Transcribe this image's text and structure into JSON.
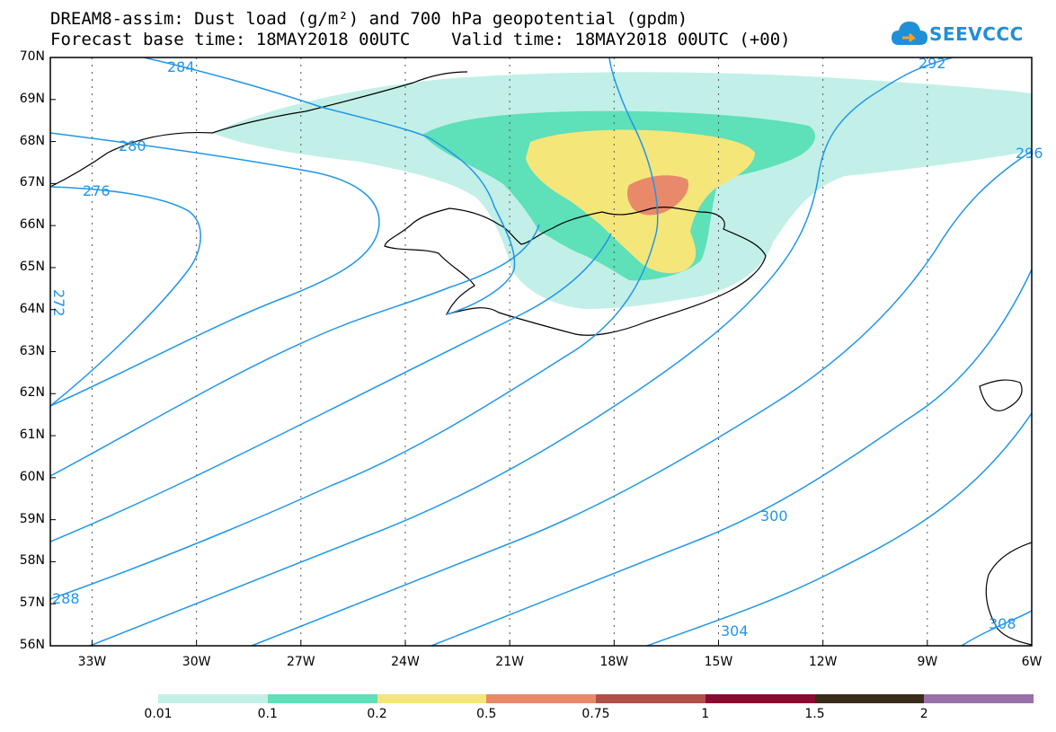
{
  "title": {
    "line1": "DREAM8-assim: Dust load (g/m²) and 700 hPa geopotential (gpdm)",
    "line2": "Forecast base time: 18MAY2018 00UTC    Valid time: 18MAY2018 00UTC (+00)"
  },
  "logo": {
    "text": "SEEVCCC",
    "icon": "cloud-icon"
  },
  "axes": {
    "lat_labels": [
      "70N",
      "69N",
      "68N",
      "67N",
      "66N",
      "65N",
      "64N",
      "63N",
      "62N",
      "61N",
      "60N",
      "59N",
      "58N",
      "57N",
      "56N"
    ],
    "lon_labels": [
      "33W",
      "30W",
      "27W",
      "24W",
      "21W",
      "18W",
      "15W",
      "12W",
      "9W",
      "6W"
    ]
  },
  "contour_labels": [
    "284",
    "280",
    "276",
    "272",
    "288",
    "292",
    "296",
    "300",
    "304",
    "308"
  ],
  "legend": {
    "labels": [
      "0.01",
      "0.1",
      "0.2",
      "0.5",
      "0.75",
      "1",
      "1.5",
      "2"
    ],
    "colors": [
      "#c2f0e8",
      "#5ee0b8",
      "#f5e67a",
      "#e8896a",
      "#b05048",
      "#8a0a30",
      "#3a2a1a",
      "#9a70a8"
    ]
  },
  "colors": {
    "contour": "#2196e8",
    "dust_light": "#c2f0e8",
    "dust_mid": "#5ee0b8",
    "dust_yellow": "#f5e67a",
    "dust_orange": "#e8896a"
  }
}
